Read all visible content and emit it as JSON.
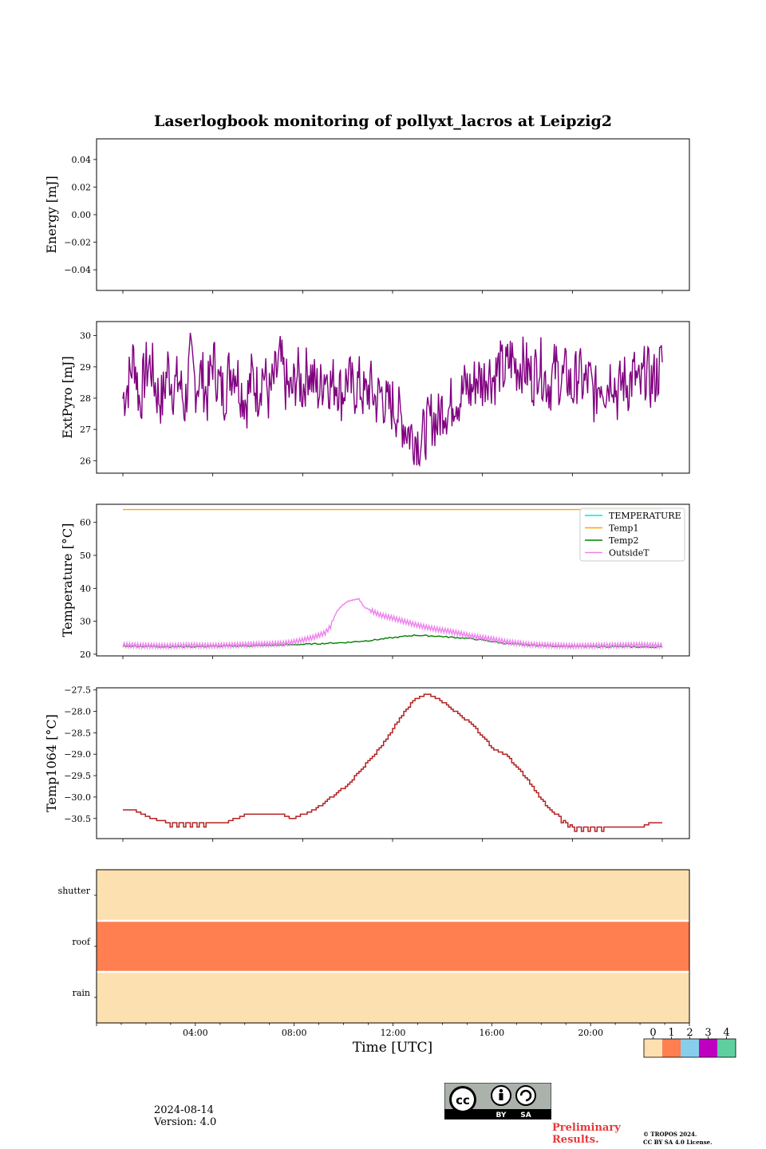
{
  "title": "Laserlogbook monitoring of pollyxt_lacros at Leipzig2",
  "footer": {
    "date": "2024-08-14",
    "version": "Version: 4.0",
    "preliminary_line1": "Preliminary",
    "preliminary_line2": "Results.",
    "copyright_line1": "© TROPOS 2024.",
    "copyright_line2": "CC BY SA 4.0 License.",
    "cc_labels": [
      "BY",
      "SA"
    ]
  },
  "colors": {
    "extpyro": "#800080",
    "temperature": "#00e5ee",
    "temp1": "#ffa500",
    "temp2": "#008000",
    "outsideT": "#ee82ee",
    "temp1064": "#b22222",
    "status": [
      "#fde0b0",
      "#ff7f50",
      "#87ceeb",
      "#c000c0",
      "#5fcfa0"
    ]
  },
  "chart_data": [
    {
      "type": "line",
      "ylabel": "Energy [mJ]",
      "ylim": [
        -0.055,
        0.055
      ],
      "yticks": [
        "0.04",
        "0.02",
        "0.00",
        "−0.02",
        "−0.04"
      ],
      "ytick_values": [
        0.04,
        0.02,
        0.0,
        -0.02,
        -0.04
      ],
      "series": []
    },
    {
      "type": "line",
      "ylabel": "ExtPyro [mJ]",
      "ylim": [
        25.6,
        30.45
      ],
      "yticks": [
        "26",
        "27",
        "28",
        "29",
        "30"
      ],
      "ytick_values": [
        26,
        27,
        28,
        29,
        30
      ],
      "series": [
        {
          "x": [
            0.0,
            0.25,
            0.5,
            0.75,
            1.0,
            1.25,
            1.5,
            1.75,
            2.0,
            2.25,
            2.5,
            2.75,
            3.0,
            3.25,
            3.5,
            3.75,
            4.0,
            4.25,
            4.5,
            4.75,
            5.0,
            5.25,
            5.5,
            5.75,
            6.0,
            6.25,
            6.5,
            6.75,
            7.0,
            7.25,
            7.5,
            7.75,
            8.0,
            8.25,
            8.5,
            8.75,
            9.0,
            9.25,
            9.5,
            9.75,
            10.0,
            10.25,
            10.5,
            10.75,
            11.0,
            11.25,
            11.5,
            11.75,
            12.0,
            12.25,
            12.5,
            12.75,
            13.0,
            13.25,
            13.5,
            13.75,
            14.0,
            14.25,
            14.5,
            14.75,
            15.0,
            15.25,
            15.5,
            15.75,
            16.0,
            16.25,
            16.5,
            16.75,
            17.0,
            17.25,
            17.5,
            17.75,
            18.0,
            18.25,
            18.5,
            18.75,
            19.0,
            19.25,
            19.5,
            19.75,
            20.0,
            20.25,
            20.5,
            20.75,
            21.0,
            21.25,
            21.5,
            21.75,
            22.0,
            22.25,
            22.5,
            22.75,
            23.0,
            23.25,
            23.5,
            23.75,
            24.0
          ],
          "y": [
            28.0,
            28.5,
            29.4,
            27.8,
            28.9,
            29.1,
            28.2,
            27.9,
            29.0,
            28.3,
            28.6,
            27.7,
            29.2,
            28.4,
            28.8,
            28.0,
            29.3,
            28.5,
            28.1,
            28.9,
            29.0,
            28.3,
            27.9,
            28.7,
            28.2,
            28.9,
            28.0,
            28.6,
            29.2,
            28.4,
            28.1,
            28.8,
            28.3,
            29.0,
            28.5,
            28.2,
            28.9,
            28.4,
            28.6,
            28.1,
            28.7,
            28.2,
            28.5,
            28.0,
            28.4,
            27.9,
            28.2,
            27.7,
            27.8,
            27.5,
            27.2,
            26.9,
            26.8,
            26.6,
            27.0,
            27.4,
            27.2,
            27.8,
            27.6,
            28.1,
            28.0,
            28.4,
            28.2,
            28.7,
            28.5,
            28.9,
            28.6,
            29.0,
            28.8,
            29.3,
            29.0,
            29.1,
            28.9,
            28.6,
            29.2,
            28.7,
            28.4,
            29.0,
            28.5,
            28.8,
            28.2,
            28.9,
            28.4,
            28.6,
            28.0,
            28.7,
            28.3,
            28.9,
            28.1,
            28.6,
            28.4,
            28.8,
            28.2,
            28.9,
            28.5,
            28.7,
            29.2
          ]
        }
      ]
    },
    {
      "type": "line",
      "ylabel": "Temperature [°C]",
      "ylim": [
        19.5,
        65.5
      ],
      "yticks": [
        "20",
        "30",
        "40",
        "50",
        "60"
      ],
      "ytick_values": [
        20,
        30,
        40,
        50,
        60
      ],
      "legend_position": "upper right",
      "series": [
        {
          "name": "TEMPERATURE",
          "x": [],
          "y": []
        },
        {
          "name": "Temp1",
          "x": [
            0,
            24
          ],
          "y": [
            63.9,
            63.9
          ]
        },
        {
          "name": "Temp2",
          "x": [
            0.0,
            1.0,
            2.0,
            3.0,
            4.0,
            5.0,
            6.0,
            7.0,
            8.0,
            9.0,
            10.0,
            10.5,
            11.0,
            11.5,
            12.0,
            12.5,
            13.0,
            13.5,
            14.0,
            14.5,
            15.0,
            15.5,
            16.0,
            16.5,
            17.0,
            18.0,
            19.0,
            20.0,
            21.0,
            22.0,
            23.0,
            24.0
          ],
          "y": [
            22.5,
            22.4,
            22.3,
            22.3,
            22.4,
            22.5,
            22.6,
            22.8,
            23.0,
            23.3,
            23.6,
            23.9,
            24.2,
            24.6,
            25.0,
            25.4,
            25.8,
            25.6,
            25.5,
            25.2,
            25.0,
            24.7,
            24.3,
            23.8,
            23.3,
            22.8,
            22.5,
            22.4,
            22.3,
            22.3,
            22.2,
            22.2
          ]
        },
        {
          "name": "OutsideT",
          "x": [
            0.0,
            1.0,
            2.0,
            3.0,
            4.0,
            5.0,
            6.0,
            7.0,
            7.5,
            8.0,
            8.5,
            9.0,
            9.25,
            9.5,
            9.75,
            10.0,
            10.25,
            10.5,
            10.75,
            11.0,
            11.25,
            11.5,
            12.0,
            12.5,
            13.0,
            13.5,
            14.0,
            14.5,
            15.0,
            15.5,
            16.0,
            16.5,
            17.0,
            18.0,
            19.0,
            20.0,
            21.0,
            22.0,
            23.0,
            24.0
          ],
          "y": [
            22.8,
            22.6,
            22.5,
            22.7,
            22.6,
            22.8,
            23.0,
            23.2,
            23.6,
            24.3,
            25.2,
            26.5,
            28.5,
            32.8,
            34.8,
            36.0,
            36.5,
            36.8,
            34.2,
            33.5,
            32.5,
            31.8,
            31.0,
            30.0,
            29.0,
            28.2,
            27.5,
            27.0,
            26.3,
            25.5,
            25.0,
            24.5,
            23.8,
            23.0,
            22.7,
            22.5,
            22.6,
            22.7,
            22.8,
            22.6
          ]
        }
      ]
    },
    {
      "type": "line",
      "ylabel": "Temp1064 [°C]",
      "ylim": [
        -30.97,
        -27.45
      ],
      "yticks": [
        "−27.5",
        "−28.0",
        "−28.5",
        "−29.0",
        "−29.5",
        "−30.0",
        "−30.5"
      ],
      "ytick_values": [
        -27.5,
        -28.0,
        -28.5,
        -29.0,
        -29.5,
        -30.0,
        -30.5
      ],
      "series": [
        {
          "x": [
            0.0,
            0.5,
            0.8,
            1.2,
            2.0,
            2.5,
            3.0,
            3.5,
            4.0,
            4.5,
            5.0,
            5.5,
            6.0,
            6.5,
            7.0,
            7.5,
            8.0,
            8.5,
            9.0,
            9.5,
            10.0,
            10.5,
            11.0,
            11.5,
            12.0,
            12.5,
            13.0,
            13.5,
            14.0,
            14.5,
            15.0,
            15.5,
            16.0,
            16.5,
            17.0,
            17.5,
            18.0,
            18.5,
            19.0,
            19.5,
            20.0,
            20.5,
            21.0,
            21.5,
            22.0,
            22.5,
            23.0,
            23.5,
            24.0
          ],
          "y": [
            -30.3,
            -30.3,
            -30.4,
            -30.5,
            -30.6,
            -30.6,
            -30.6,
            -30.6,
            -30.6,
            -30.6,
            -30.5,
            -30.4,
            -30.4,
            -30.4,
            -30.4,
            -30.5,
            -30.4,
            -30.3,
            -30.1,
            -29.9,
            -29.7,
            -29.4,
            -29.1,
            -28.8,
            -28.4,
            -28.0,
            -27.7,
            -27.6,
            -27.7,
            -27.9,
            -28.1,
            -28.3,
            -28.6,
            -28.9,
            -29.0,
            -29.3,
            -29.6,
            -30.0,
            -30.3,
            -30.5,
            -30.7,
            -30.7,
            -30.7,
            -30.7,
            -30.7,
            -30.7,
            -30.7,
            -30.6,
            -30.6
          ]
        }
      ]
    },
    {
      "type": "heatmap",
      "rows": [
        "shutter",
        "roof",
        "rain"
      ],
      "row_values": [
        0,
        1,
        0
      ],
      "colorbar_ticks": [
        "0",
        "1",
        "2",
        "3",
        "4"
      ]
    }
  ],
  "x_axis": {
    "label": "Time [UTC]",
    "ticks": [
      "04:00",
      "08:00",
      "12:00",
      "16:00",
      "20:00"
    ]
  }
}
